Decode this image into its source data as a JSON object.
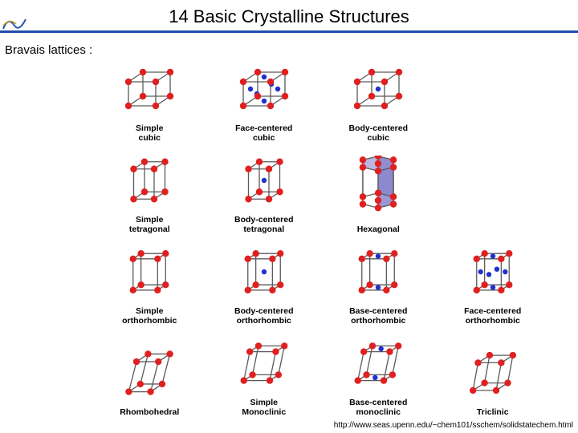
{
  "page": {
    "title": "14 Basic Crystalline Structures",
    "subtitle": "Bravais lattices :",
    "footer_url": "http://www.seas.upenn.edu/~chem101/sschem/solidstatechem.html",
    "rule_color": "#1f4ea8",
    "background": "#ffffff"
  },
  "style": {
    "corner_color": "#e02020",
    "center_color": "#2030d0",
    "edge_color": "#5a5a5a",
    "hex_fill": "#8a86cc",
    "corner_radius": 4.2,
    "center_radius": 3.2,
    "edge_width": 1.3,
    "title_fontsize": 22,
    "label_fontsize": 10.5,
    "label_weight": "bold"
  },
  "lattices": [
    {
      "id": "simple-cubic",
      "label": "Simple\ncubic",
      "shape": "cube",
      "sx": 1,
      "sy": 1,
      "sz": 1,
      "shear": 0,
      "face_centers": false,
      "body_center": false,
      "base_centers": false
    },
    {
      "id": "face-centered-cubic",
      "label": "Face-centered\ncubic",
      "shape": "cube",
      "sx": 1,
      "sy": 1,
      "sz": 1,
      "shear": 0,
      "face_centers": true,
      "body_center": false,
      "base_centers": false
    },
    {
      "id": "body-centered-cubic",
      "label": "Body-centered\ncubic",
      "shape": "cube",
      "sx": 1,
      "sy": 1,
      "sz": 1,
      "shear": 0,
      "face_centers": false,
      "body_center": true,
      "base_centers": false
    },
    {
      "id": "empty1",
      "empty": true
    },
    {
      "id": "simple-tetragonal",
      "label": "Simple\ntetragonal",
      "shape": "cube",
      "sx": 0.75,
      "sy": 0.75,
      "sz": 1.25,
      "shear": 0,
      "face_centers": false,
      "body_center": false,
      "base_centers": false
    },
    {
      "id": "body-centered-tetragonal",
      "label": "Body-centered\ntetragonal",
      "shape": "cube",
      "sx": 0.75,
      "sy": 0.75,
      "sz": 1.25,
      "shear": 0,
      "face_centers": false,
      "body_center": true,
      "base_centers": false
    },
    {
      "id": "hexagonal",
      "label": "Hexagonal",
      "shape": "hex",
      "sz": 1.3
    },
    {
      "id": "empty2",
      "empty": true
    },
    {
      "id": "simple-orthorhombic",
      "label": "Simple\northorhombic",
      "shape": "cube",
      "sx": 0.9,
      "sy": 0.55,
      "sz": 1.3,
      "shear": 0,
      "face_centers": false,
      "body_center": false,
      "base_centers": false
    },
    {
      "id": "body-centered-orthorhombic",
      "label": "Body-centered\northorhombic",
      "shape": "cube",
      "sx": 0.9,
      "sy": 0.55,
      "sz": 1.3,
      "shear": 0,
      "face_centers": false,
      "body_center": true,
      "base_centers": false
    },
    {
      "id": "base-centered-orthorhombic",
      "label": "Base-centered\northorhombic",
      "shape": "cube",
      "sx": 0.9,
      "sy": 0.55,
      "sz": 1.3,
      "shear": 0,
      "face_centers": false,
      "body_center": false,
      "base_centers": true
    },
    {
      "id": "face-centered-orthorhombic",
      "label": "Face-centered\northorhombic",
      "shape": "cube",
      "sx": 0.9,
      "sy": 0.55,
      "sz": 1.3,
      "shear": 0,
      "face_centers": true,
      "body_center": false,
      "base_centers": false
    },
    {
      "id": "rhombohedral",
      "label": "Rhombohedral",
      "shape": "cube",
      "sx": 0.8,
      "sy": 0.8,
      "sz": 1.25,
      "shear": 0.35,
      "face_centers": false,
      "body_center": false,
      "base_centers": false
    },
    {
      "id": "simple-monoclinic",
      "label": "Simple\nMonoclinic",
      "shape": "cube",
      "sx": 0.95,
      "sy": 0.6,
      "sz": 1.2,
      "shear": 0.28,
      "face_centers": false,
      "body_center": false,
      "base_centers": false
    },
    {
      "id": "base-centered-monoclinic",
      "label": "Base-centered\nmonoclinic",
      "shape": "cube",
      "sx": 0.95,
      "sy": 0.6,
      "sz": 1.2,
      "shear": 0.28,
      "face_centers": false,
      "body_center": false,
      "base_centers": true
    },
    {
      "id": "triclinic",
      "label": "Triclinic",
      "shape": "cube",
      "sx": 0.85,
      "sy": 0.7,
      "sz": 1.15,
      "shear": 0.25,
      "yshear": 0.22,
      "face_centers": false,
      "body_center": false,
      "base_centers": false
    }
  ]
}
